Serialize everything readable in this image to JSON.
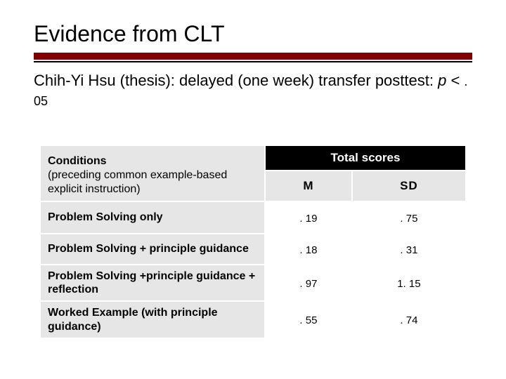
{
  "title": "Evidence from CLT",
  "subtitle_main": "Chih-Yi Hsu (thesis): delayed (one week) transfer posttest: ",
  "subtitle_p": "p",
  "subtitle_lt": " < ",
  "subtitle_val": ". 05",
  "table": {
    "header_left_bold": "Conditions",
    "header_left_sub": "(preceding common example-based explicit instruction)",
    "header_top": "Total scores",
    "col1": "M",
    "col2": "SD",
    "rows": [
      {
        "label": "Problem Solving only",
        "m": ". 19",
        "sd": ". 75"
      },
      {
        "label": "Problem Solving + principle guidance",
        "m": ". 18",
        "sd": ". 31"
      },
      {
        "label": "Problem Solving +principle guidance + reflection",
        "m": ". 97",
        "sd": "1. 15"
      },
      {
        "label": "Worked Example (with principle guidance)",
        "m": ". 55",
        "sd": ". 74"
      }
    ]
  },
  "colors": {
    "rule": "#800000",
    "header_bg": "#e6e6e6",
    "dark_bg": "#000000"
  }
}
